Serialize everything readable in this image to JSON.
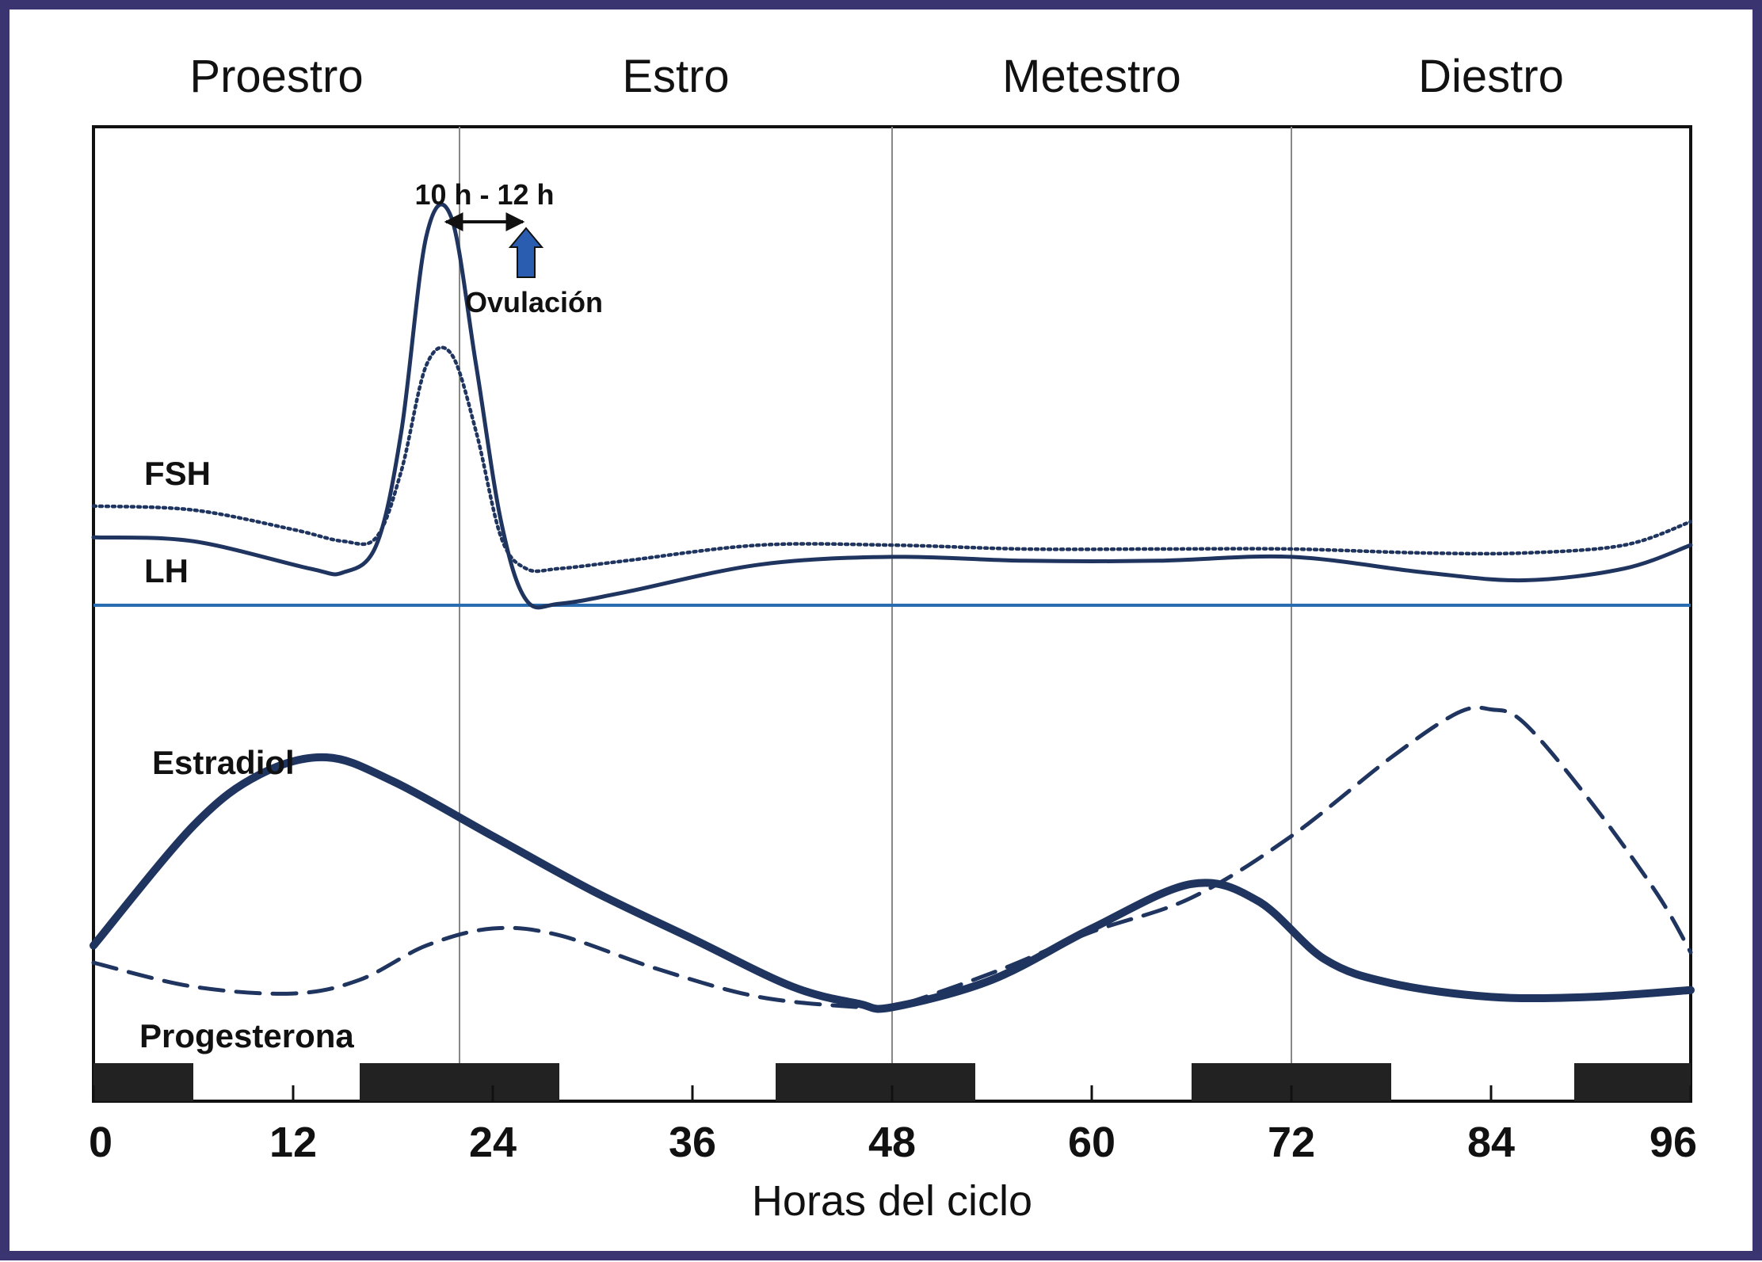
{
  "colors": {
    "frame": "#3a3470",
    "series": "#1f3560",
    "baseline": "#2a6cb0",
    "arrow": "#2a5db0",
    "dark_block": "#222222"
  },
  "chart_data": {
    "type": "line",
    "xlabel": "Horas del ciclo",
    "xlim": [
      0,
      96
    ],
    "x_ticks": [
      0,
      12,
      24,
      36,
      48,
      60,
      72,
      84,
      96
    ],
    "phases": [
      {
        "label": "Proestro",
        "start": 0,
        "end": 22
      },
      {
        "label": "Estro",
        "start": 22,
        "end": 48
      },
      {
        "label": "Metestro",
        "start": 48,
        "end": 72
      },
      {
        "label": "Diestro",
        "start": 72,
        "end": 96
      }
    ],
    "phase_dividers": [
      22,
      48,
      72
    ],
    "panels": [
      {
        "name": "gonadotropins",
        "ylim": [
          0,
          100
        ],
        "series": [
          {
            "name": "LH",
            "style": "solid",
            "x": [
              0,
              6,
              13,
              15,
              17,
              18.5,
              20,
              21.5,
              23,
              24.5,
              26,
              28,
              32,
              40,
              48,
              56,
              64,
              72,
              80,
              86,
              92,
              96
            ],
            "y": [
              18,
              17,
              10,
              9,
              16,
              45,
              95,
              100,
              62,
              22,
              2,
              1,
              4,
              11,
              13,
              12,
              12,
              13,
              9,
              7,
              10,
              16
            ]
          },
          {
            "name": "FSH",
            "style": "dotted",
            "x": [
              0,
              6,
              12,
              15,
              17,
              18.5,
              20,
              21.5,
              23,
              24.5,
              26,
              28,
              32,
              40,
              48,
              56,
              64,
              72,
              80,
              86,
              92,
              96
            ],
            "y": [
              26,
              25,
              20,
              17,
              18,
              35,
              62,
              65,
              45,
              18,
              10,
              10,
              12,
              16,
              16,
              15,
              15,
              15,
              14,
              14,
              16,
              22
            ]
          }
        ]
      },
      {
        "name": "steroids",
        "ylim": [
          0,
          100
        ],
        "series": [
          {
            "name": "Estradiol",
            "style": "thick-solid",
            "x": [
              0,
              6,
              10,
              14,
              18,
              24,
              30,
              36,
              42,
              46,
              48,
              54,
              60,
              66,
              70,
              74,
              78,
              84,
              90,
              96
            ],
            "y": [
              20,
              55,
              70,
              75,
              68,
              52,
              36,
              22,
              8,
              3,
              2,
              10,
              25,
              38,
              33,
              16,
              9,
              5,
              5,
              7
            ]
          },
          {
            "name": "Progesterona",
            "style": "dashed",
            "x": [
              0,
              6,
              12,
              16,
              20,
              24,
              28,
              34,
              40,
              46,
              48,
              54,
              60,
              66,
              72,
              78,
              82,
              84,
              86,
              90,
              94,
              96
            ],
            "y": [
              15,
              8,
              6,
              10,
              20,
              25,
              23,
              13,
              5,
              2,
              2,
              12,
              24,
              34,
              52,
              75,
              88,
              89,
              85,
              62,
              35,
              18
            ]
          }
        ]
      }
    ],
    "annotations": [
      {
        "text": "10 h - 12 h",
        "from_x": 21,
        "to_x": 26
      },
      {
        "text": "Ovulación",
        "x": 26
      }
    ],
    "dark_periods": [
      [
        0,
        6
      ],
      [
        16,
        28
      ],
      [
        41,
        53
      ],
      [
        66,
        78
      ],
      [
        89,
        96
      ]
    ]
  }
}
